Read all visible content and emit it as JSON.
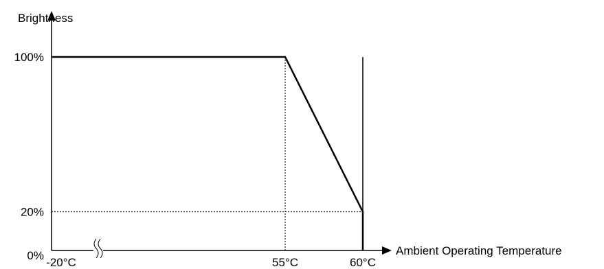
{
  "chart_data": {
    "type": "line",
    "title": "",
    "ylabel": "Brightness",
    "xlabel": "Ambient Operating Temperature",
    "x_ticks": [
      {
        "value": -20,
        "label": "-20°C"
      },
      {
        "value": 55,
        "label": "55°C"
      },
      {
        "value": 60,
        "label": "60°C"
      }
    ],
    "y_ticks": [
      {
        "value": 0,
        "label": "0%"
      },
      {
        "value": 20,
        "label": "20%"
      },
      {
        "value": 100,
        "label": "100%"
      }
    ],
    "axis_break": "x-axis between -20°C and 55°C",
    "series": [
      {
        "points": [
          {
            "x": -20,
            "y": 100
          },
          {
            "x": 55,
            "y": 100
          },
          {
            "x": 60,
            "y": 20
          },
          {
            "x": 60,
            "y": 0
          }
        ]
      }
    ],
    "reference_lines": [
      {
        "orientation": "vertical",
        "x": 55,
        "from_y": 0,
        "to_y": 100,
        "style": "dotted"
      },
      {
        "orientation": "horizontal",
        "y": 20,
        "from_x": -20,
        "to_x": 60,
        "style": "dotted"
      }
    ],
    "boundary_line": {
      "orientation": "vertical",
      "x": 60,
      "from_y": 0,
      "to_y": 100
    },
    "ylim": [
      0,
      100
    ],
    "grid": false,
    "colors": {
      "line": "#000000"
    }
  }
}
